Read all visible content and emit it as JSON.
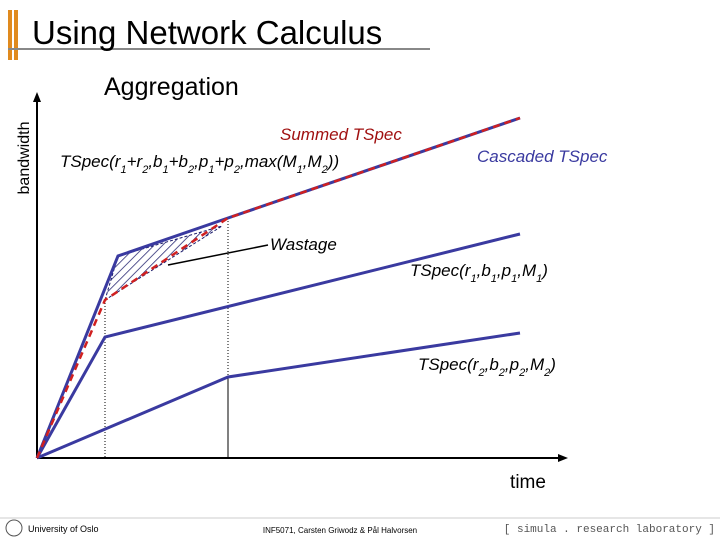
{
  "header": {
    "title": "Using Network Calculus",
    "subtitle": "Aggregation"
  },
  "diagram": {
    "y_axis_label": "bandwidth",
    "x_axis_label": "time",
    "labels": {
      "summed": "Summed TSpec",
      "summed_formula": "TSpec(r1+r2,b1+b2,p1+p2,max(M1,M2))",
      "cascaded": "Cascaded TSpec",
      "wastage": "Wastage",
      "flow1": "TSpec(r1,b1,p1,M1)",
      "flow2": "TSpec(r2,b2,p2,M2)"
    }
  },
  "footer": {
    "left": "University of Oslo",
    "center": "INF5071, Carsten Griwodz & Pål Halvorsen",
    "right": "[ simula . research laboratory ]"
  }
}
